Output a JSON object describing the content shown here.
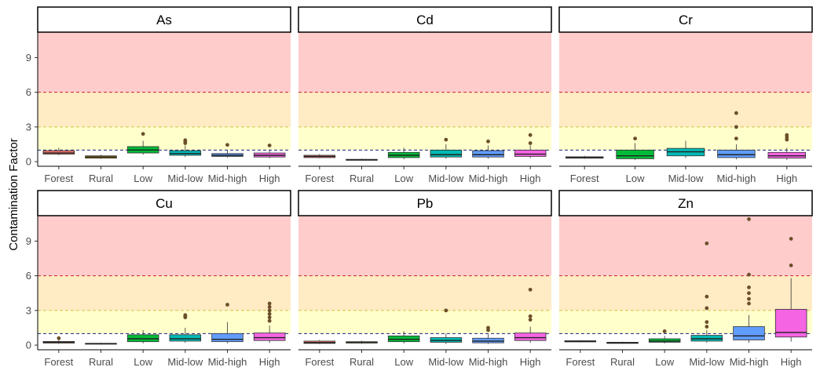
{
  "figure": {
    "ylabel": "Contamination Factor"
  },
  "chart_data": {
    "type": "box",
    "ylim": [
      -0.4,
      11.2
    ],
    "yticks": [
      0,
      3,
      6,
      9
    ],
    "bands": [
      {
        "from": 0,
        "to": 1,
        "color": "#FFFFFF"
      },
      {
        "from": 1,
        "to": 3,
        "color": "#FFFFCC"
      },
      {
        "from": 3,
        "to": 6,
        "color": "#FFEBC4"
      },
      {
        "from": 6,
        "to": 11.2,
        "color": "#FFCCCC"
      }
    ],
    "reference_lines": [
      {
        "y": 1,
        "color": "#1A237E"
      },
      {
        "y": 3,
        "color": "#D4C14A"
      },
      {
        "y": 6,
        "color": "#C62828"
      }
    ],
    "grid": false,
    "legend": "none",
    "category_colors": {
      "Forest": "#F8766D",
      "Rural": "#C49A00",
      "Low": "#00BA38",
      "Mid-low": "#00B9B3",
      "Mid-high": "#619CFF",
      "High": "#F564E3"
    },
    "outlier_color": "#6B4F2A",
    "panels": [
      {
        "title": "As",
        "categories": [
          "Forest",
          "Rural",
          "Low",
          "Mid-low",
          "Mid-high",
          "High"
        ],
        "boxes": [
          {
            "q1": 0.65,
            "median": 0.75,
            "q3": 0.95,
            "whisker_low": 0.55,
            "whisker_high": 1.2,
            "outliers": []
          },
          {
            "q1": 0.3,
            "median": 0.4,
            "q3": 0.5,
            "whisker_low": 0.25,
            "whisker_high": 0.6,
            "outliers": []
          },
          {
            "q1": 0.75,
            "median": 1.0,
            "q3": 1.3,
            "whisker_low": 0.6,
            "whisker_high": 1.8,
            "outliers": [
              2.4
            ]
          },
          {
            "q1": 0.55,
            "median": 0.7,
            "q3": 0.95,
            "whisker_low": 0.4,
            "whisker_high": 1.4,
            "outliers": [
              1.6,
              1.7,
              1.85
            ]
          },
          {
            "q1": 0.45,
            "median": 0.55,
            "q3": 0.7,
            "whisker_low": 0.35,
            "whisker_high": 1.0,
            "outliers": [
              1.45
            ]
          },
          {
            "q1": 0.4,
            "median": 0.55,
            "q3": 0.75,
            "whisker_low": 0.3,
            "whisker_high": 1.0,
            "outliers": [
              1.4
            ]
          }
        ]
      },
      {
        "title": "Cd",
        "categories": [
          "Forest",
          "Rural",
          "Low",
          "Mid-low",
          "Mid-high",
          "High"
        ],
        "boxes": [
          {
            "q1": 0.35,
            "median": 0.45,
            "q3": 0.55,
            "whisker_low": 0.3,
            "whisker_high": 0.65,
            "outliers": []
          },
          {
            "q1": 0.12,
            "median": 0.15,
            "q3": 0.2,
            "whisker_low": 0.1,
            "whisker_high": 0.25,
            "outliers": []
          },
          {
            "q1": 0.35,
            "median": 0.55,
            "q3": 0.8,
            "whisker_low": 0.2,
            "whisker_high": 1.2,
            "outliers": []
          },
          {
            "q1": 0.4,
            "median": 0.6,
            "q3": 1.0,
            "whisker_low": 0.25,
            "whisker_high": 1.5,
            "outliers": [
              1.9
            ]
          },
          {
            "q1": 0.4,
            "median": 0.6,
            "q3": 0.95,
            "whisker_low": 0.25,
            "whisker_high": 1.4,
            "outliers": [
              1.75
            ]
          },
          {
            "q1": 0.45,
            "median": 0.65,
            "q3": 1.0,
            "whisker_low": 0.3,
            "whisker_high": 1.4,
            "outliers": [
              1.6,
              2.3
            ]
          }
        ]
      },
      {
        "title": "Cr",
        "categories": [
          "Forest",
          "Low",
          "Mid-low",
          "Mid-high",
          "High"
        ],
        "boxes": [
          {
            "q1": 0.3,
            "median": 0.35,
            "q3": 0.42,
            "whisker_low": 0.25,
            "whisker_high": 0.5,
            "outliers": []
          },
          {
            "q1": 0.25,
            "median": 0.5,
            "q3": 1.0,
            "whisker_low": 0.15,
            "whisker_high": 1.6,
            "outliers": [
              2.0
            ]
          },
          {
            "q1": 0.5,
            "median": 0.85,
            "q3": 1.15,
            "whisker_low": 0.3,
            "whisker_high": 1.8,
            "outliers": []
          },
          {
            "q1": 0.35,
            "median": 0.6,
            "q3": 1.0,
            "whisker_low": 0.2,
            "whisker_high": 1.5,
            "outliers": [
              2.0,
              3.0,
              4.2
            ]
          },
          {
            "q1": 0.3,
            "median": 0.5,
            "q3": 0.8,
            "whisker_low": 0.15,
            "whisker_high": 1.2,
            "outliers": [
              1.9,
              2.1,
              2.3
            ]
          }
        ]
      },
      {
        "title": "Cu",
        "categories": [
          "Forest",
          "Rural",
          "Low",
          "Mid-low",
          "Mid-high",
          "High"
        ],
        "boxes": [
          {
            "q1": 0.18,
            "median": 0.25,
            "q3": 0.32,
            "whisker_low": 0.12,
            "whisker_high": 0.45,
            "outliers": [
              0.6
            ]
          },
          {
            "q1": 0.08,
            "median": 0.12,
            "q3": 0.16,
            "whisker_low": 0.05,
            "whisker_high": 0.2,
            "outliers": []
          },
          {
            "q1": 0.3,
            "median": 0.55,
            "q3": 0.9,
            "whisker_low": 0.15,
            "whisker_high": 1.3,
            "outliers": []
          },
          {
            "q1": 0.35,
            "median": 0.55,
            "q3": 0.9,
            "whisker_low": 0.2,
            "whisker_high": 1.5,
            "outliers": [
              2.4,
              2.5,
              2.6
            ]
          },
          {
            "q1": 0.3,
            "median": 0.5,
            "q3": 1.0,
            "whisker_low": 0.15,
            "whisker_high": 2.0,
            "outliers": [
              3.5
            ]
          },
          {
            "q1": 0.4,
            "median": 0.65,
            "q3": 1.05,
            "whisker_low": 0.2,
            "whisker_high": 1.7,
            "outliers": [
              2.1,
              2.4,
              2.7,
              3.0,
              3.3,
              3.6
            ]
          }
        ]
      },
      {
        "title": "Pb",
        "categories": [
          "Forest",
          "Rural",
          "Low",
          "Mid-low",
          "Mid-high",
          "High"
        ],
        "boxes": [
          {
            "q1": 0.15,
            "median": 0.22,
            "q3": 0.35,
            "whisker_low": 0.1,
            "whisker_high": 0.45,
            "outliers": []
          },
          {
            "q1": 0.18,
            "median": 0.22,
            "q3": 0.3,
            "whisker_low": 0.12,
            "whisker_high": 0.38,
            "outliers": []
          },
          {
            "q1": 0.3,
            "median": 0.5,
            "q3": 0.8,
            "whisker_low": 0.15,
            "whisker_high": 1.2,
            "outliers": []
          },
          {
            "q1": 0.25,
            "median": 0.4,
            "q3": 0.65,
            "whisker_low": 0.1,
            "whisker_high": 1.0,
            "outliers": [
              3.0
            ]
          },
          {
            "q1": 0.2,
            "median": 0.35,
            "q3": 0.6,
            "whisker_low": 0.1,
            "whisker_high": 0.95,
            "outliers": [
              1.3,
              1.5
            ]
          },
          {
            "q1": 0.4,
            "median": 0.65,
            "q3": 1.05,
            "whisker_low": 0.2,
            "whisker_high": 1.6,
            "outliers": [
              2.2,
              2.5,
              4.8
            ]
          }
        ]
      },
      {
        "title": "Zn",
        "categories": [
          "Forest",
          "Rural",
          "Low",
          "Mid-low",
          "Mid-high",
          "High"
        ],
        "boxes": [
          {
            "q1": 0.28,
            "median": 0.33,
            "q3": 0.38,
            "whisker_low": 0.25,
            "whisker_high": 0.42,
            "outliers": []
          },
          {
            "q1": 0.15,
            "median": 0.2,
            "q3": 0.25,
            "whisker_low": 0.12,
            "whisker_high": 0.3,
            "outliers": []
          },
          {
            "q1": 0.25,
            "median": 0.35,
            "q3": 0.55,
            "whisker_low": 0.15,
            "whisker_high": 0.8,
            "outliers": [
              1.2
            ]
          },
          {
            "q1": 0.35,
            "median": 0.55,
            "q3": 0.85,
            "whisker_low": 0.2,
            "whisker_high": 1.3,
            "outliers": [
              1.6,
              2.0,
              3.2,
              4.2,
              8.8
            ]
          },
          {
            "q1": 0.45,
            "median": 0.8,
            "q3": 1.6,
            "whisker_low": 0.2,
            "whisker_high": 2.6,
            "outliers": [
              3.6,
              4.0,
              4.5,
              5.0,
              6.1,
              10.9
            ]
          },
          {
            "q1": 0.7,
            "median": 1.1,
            "q3": 3.1,
            "whisker_low": 0.3,
            "whisker_high": 5.8,
            "outliers": [
              6.9,
              9.2
            ]
          }
        ]
      }
    ]
  }
}
